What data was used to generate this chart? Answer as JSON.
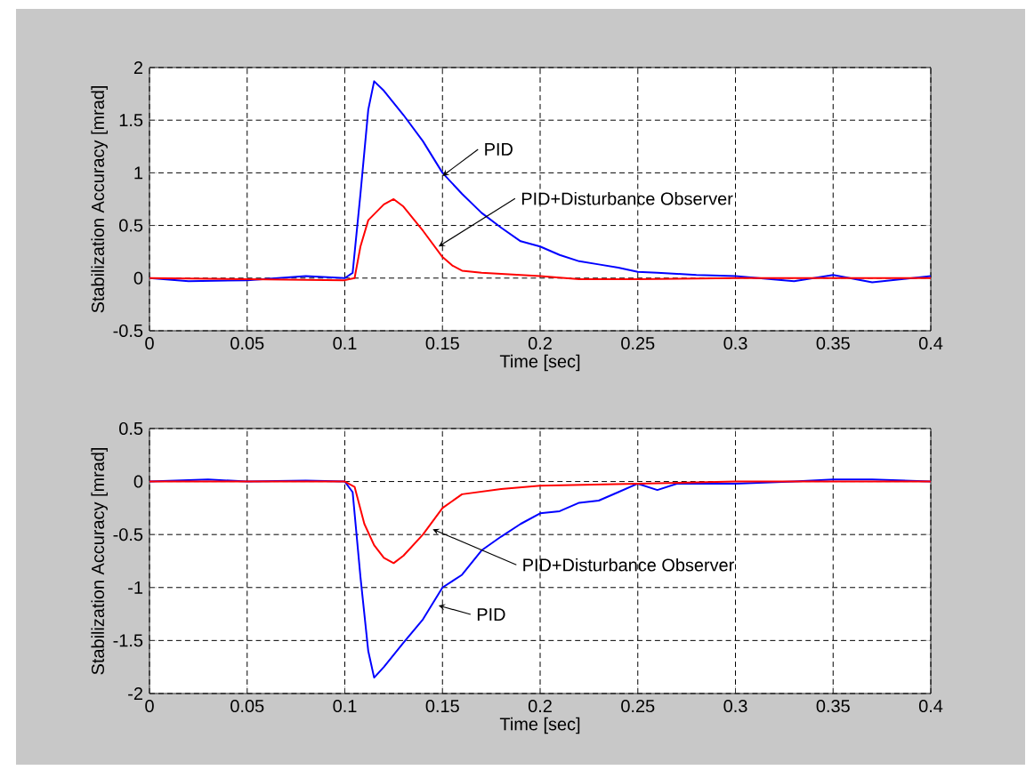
{
  "chart_data": [
    {
      "type": "line",
      "xlabel": "Time [sec]",
      "ylabel": "Stabilization Accuracy [mrad]",
      "xlim": [
        0,
        0.4
      ],
      "ylim": [
        -0.5,
        2
      ],
      "xticks": [
        0,
        0.05,
        0.1,
        0.15,
        0.2,
        0.25,
        0.3,
        0.35,
        0.4
      ],
      "yticks": [
        -0.5,
        0,
        0.5,
        1,
        1.5,
        2
      ],
      "grid": true,
      "series": [
        {
          "color": "#0000ff",
          "x": [
            0,
            0.02,
            0.05,
            0.08,
            0.1,
            0.104,
            0.108,
            0.112,
            0.115,
            0.12,
            0.13,
            0.14,
            0.15,
            0.16,
            0.17,
            0.18,
            0.19,
            0.2,
            0.21,
            0.22,
            0.23,
            0.24,
            0.25,
            0.26,
            0.27,
            0.28,
            0.3,
            0.33,
            0.35,
            0.37,
            0.4
          ],
          "values": [
            0,
            -0.03,
            -0.02,
            0.02,
            0,
            0.05,
            0.8,
            1.6,
            1.87,
            1.78,
            1.55,
            1.3,
            1.0,
            0.8,
            0.62,
            0.48,
            0.35,
            0.3,
            0.22,
            0.16,
            0.13,
            0.1,
            0.06,
            0.05,
            0.04,
            0.03,
            0.02,
            -0.03,
            0.03,
            -0.04,
            0.02
          ]
        },
        {
          "color": "#ff0000",
          "x": [
            0,
            0.05,
            0.1,
            0.105,
            0.108,
            0.112,
            0.12,
            0.125,
            0.13,
            0.14,
            0.15,
            0.155,
            0.16,
            0.17,
            0.2,
            0.22,
            0.25,
            0.3,
            0.4
          ],
          "values": [
            0,
            -0.01,
            -0.02,
            0,
            0.3,
            0.55,
            0.7,
            0.75,
            0.68,
            0.45,
            0.2,
            0.12,
            0.07,
            0.05,
            0.02,
            -0.01,
            -0.01,
            0,
            0
          ]
        }
      ],
      "annotations": [
        {
          "text": "PID",
          "x": 0.15,
          "y": 0.97
        },
        {
          "text": "PID+Disturbance Observer",
          "x": 0.148,
          "y": 0.3
        }
      ]
    },
    {
      "type": "line",
      "xlabel": "Time [sec]",
      "ylabel": "Stabilization Accuracy [mrad]",
      "xlim": [
        0,
        0.4
      ],
      "ylim": [
        -2,
        0.5
      ],
      "xticks": [
        0,
        0.05,
        0.1,
        0.15,
        0.2,
        0.25,
        0.3,
        0.35,
        0.4
      ],
      "yticks": [
        -2,
        -1.5,
        -1,
        -0.5,
        0,
        0.5
      ],
      "grid": true,
      "series": [
        {
          "color": "#0000ff",
          "x": [
            0,
            0.03,
            0.05,
            0.08,
            0.1,
            0.104,
            0.108,
            0.112,
            0.115,
            0.12,
            0.13,
            0.14,
            0.15,
            0.16,
            0.17,
            0.18,
            0.19,
            0.2,
            0.21,
            0.22,
            0.23,
            0.24,
            0.25,
            0.26,
            0.27,
            0.3,
            0.33,
            0.35,
            0.37,
            0.4
          ],
          "values": [
            0,
            0.02,
            0,
            0.01,
            0,
            -0.1,
            -0.9,
            -1.6,
            -1.85,
            -1.75,
            -1.52,
            -1.3,
            -1.0,
            -0.88,
            -0.65,
            -0.52,
            -0.4,
            -0.3,
            -0.28,
            -0.2,
            -0.18,
            -0.1,
            -0.02,
            -0.08,
            -0.02,
            -0.02,
            0,
            0.02,
            0.02,
            0
          ]
        },
        {
          "color": "#ff0000",
          "x": [
            0,
            0.05,
            0.1,
            0.105,
            0.11,
            0.115,
            0.12,
            0.125,
            0.13,
            0.14,
            0.15,
            0.16,
            0.18,
            0.2,
            0.25,
            0.3,
            0.4
          ],
          "values": [
            0,
            0,
            0,
            -0.05,
            -0.4,
            -0.6,
            -0.72,
            -0.77,
            -0.7,
            -0.5,
            -0.25,
            -0.12,
            -0.07,
            -0.04,
            -0.02,
            0,
            0
          ]
        }
      ],
      "annotations": [
        {
          "text": "PID+Disturbance Observer",
          "x": 0.145,
          "y": -0.45
        },
        {
          "text": "PID",
          "x": 0.148,
          "y": -1.17
        }
      ]
    }
  ]
}
